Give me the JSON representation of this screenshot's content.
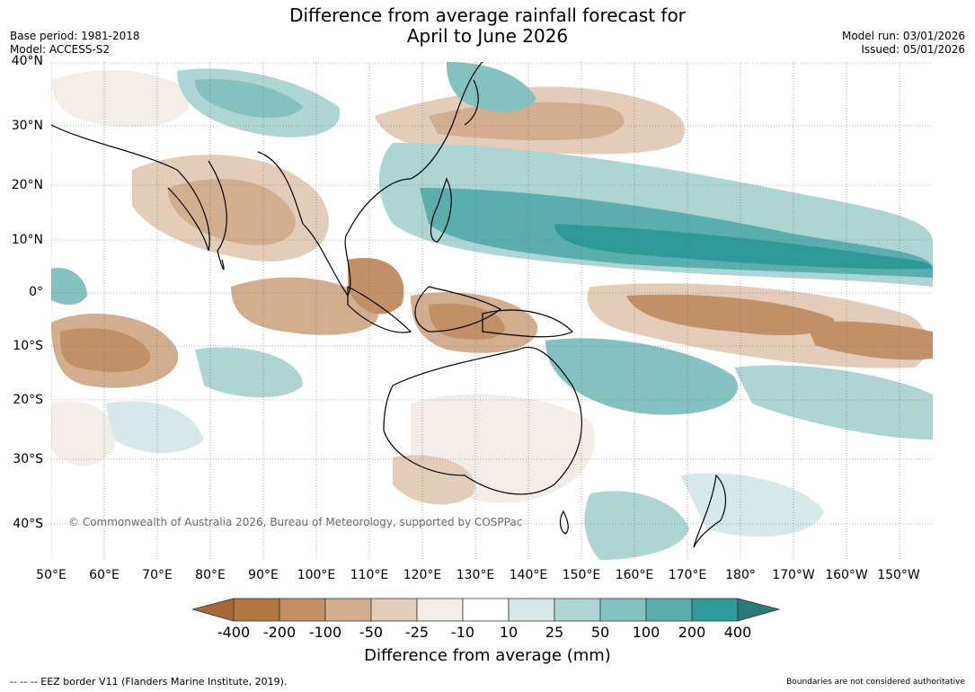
{
  "title": {
    "line1": "Difference from average rainfall forecast for",
    "line2": "April to June 2026"
  },
  "meta": {
    "base_period": "Base period: 1981-2018",
    "model": "Model: ACCESS-S2",
    "model_run": "Model run: 03/01/2026",
    "issued": "Issued: 05/01/2026"
  },
  "map": {
    "lat_labels": [
      "40°N",
      "30°N",
      "20°N",
      "10°N",
      "0°",
      "10°S",
      "20°S",
      "30°S",
      "40°S"
    ],
    "lon_labels": [
      "50°E",
      "60°E",
      "70°E",
      "80°E",
      "90°E",
      "100°E",
      "110°E",
      "120°E",
      "130°E",
      "140°E",
      "150°E",
      "160°E",
      "170°E",
      "180°",
      "170°W",
      "160°W",
      "150°W"
    ],
    "copyright": "© Commonwealth of Australia 2026, Bureau of Meteorology, supported by COSPPac"
  },
  "legend": {
    "title": "Difference from average (mm)",
    "ticks": [
      "-400",
      "-200",
      "-100",
      "-50",
      "-25",
      "-10",
      "10",
      "25",
      "50",
      "100",
      "200",
      "400"
    ],
    "colors": [
      "#a66a37",
      "#b07741",
      "#c19067",
      "#d2ae8e",
      "#e3cdb9",
      "#f2ede6",
      "#ffffff",
      "#d6e9e8",
      "#acd5d3",
      "#83c2c0",
      "#5aaeae",
      "#2e9a98",
      "#2a7a78"
    ]
  },
  "footer": {
    "eez": "--  --  -- EEZ border V11 (Flanders Marine Institute, 2019).",
    "disclaimer": "Boundaries are not considered authoritative"
  }
}
